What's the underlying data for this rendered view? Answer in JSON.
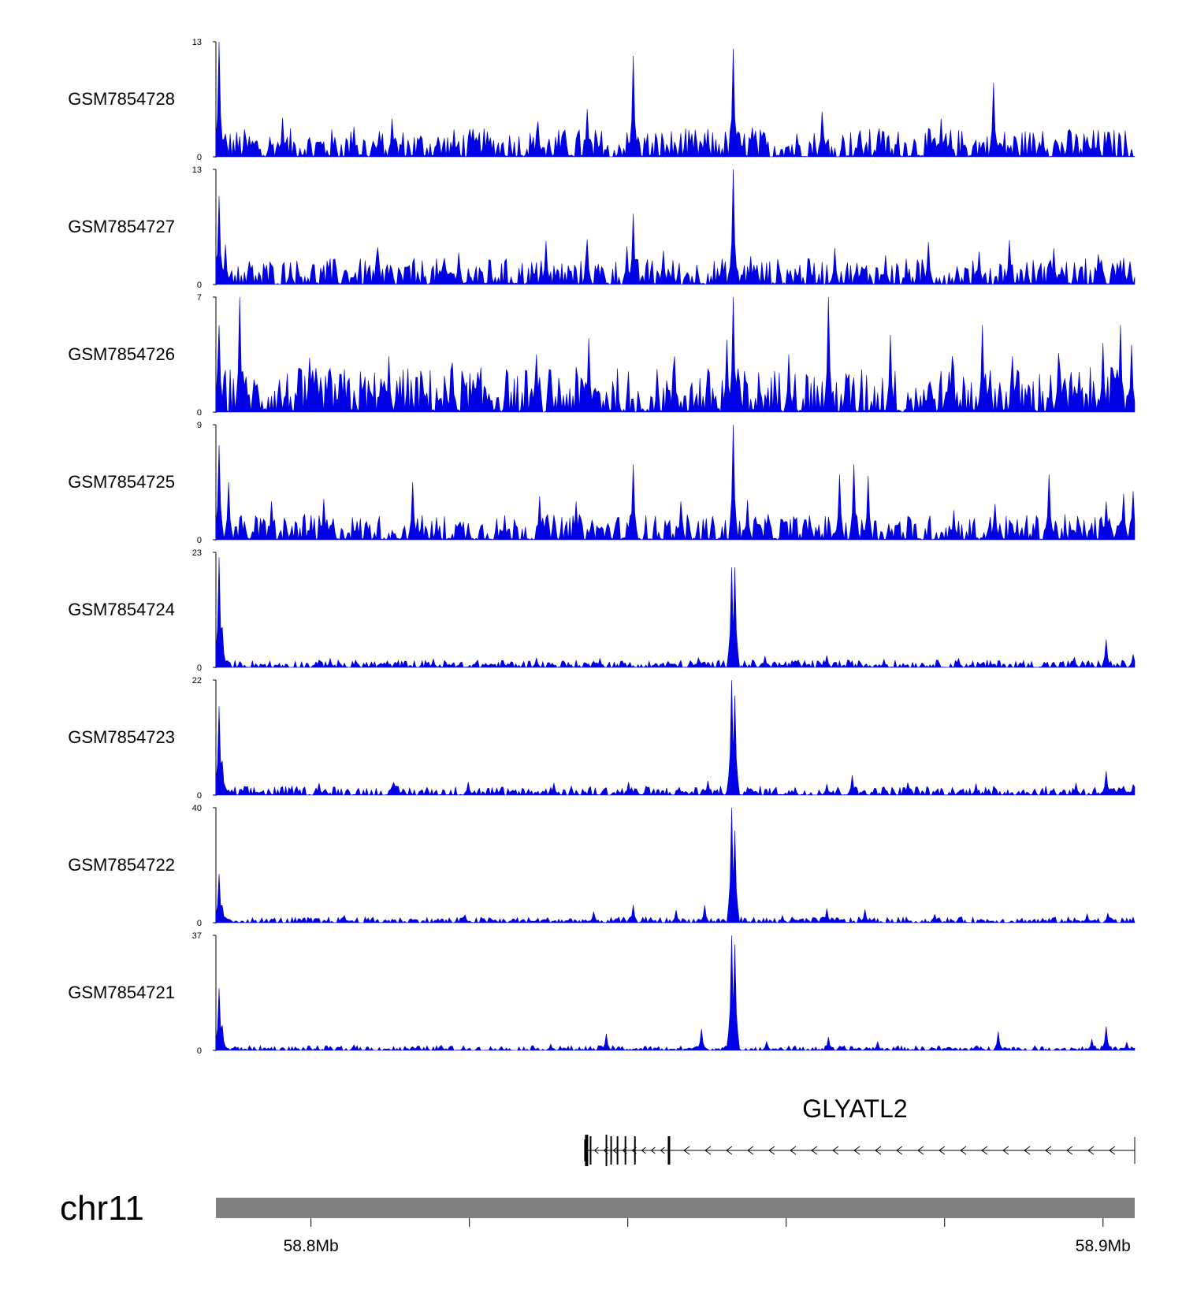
{
  "chart_data": {
    "type": "area",
    "title": "",
    "fill_color": "#0000e6",
    "chromosome": "chr11",
    "x_range_mb": [
      58.788,
      58.904
    ],
    "x_ticks_mb": [
      58.8,
      58.82,
      58.84,
      58.86,
      58.88,
      58.9
    ],
    "x_tick_labels": [
      "58.8Mb",
      "",
      "",
      "",
      "",
      "58.9Mb"
    ],
    "tracks": [
      {
        "name": "GSM7854728",
        "ymax": 13,
        "ymin_label": "0",
        "peaks": [
          [
            58.7884,
            13
          ],
          [
            58.7893,
            2.6
          ],
          [
            58.7965,
            4.4
          ],
          [
            58.8054,
            3.4
          ],
          [
            58.8102,
            4.3
          ],
          [
            58.8219,
            2.6
          ],
          [
            58.8286,
            4.0
          ],
          [
            58.8348,
            5.4
          ],
          [
            58.8406,
            11.4
          ],
          [
            58.8534,
            12.2
          ],
          [
            58.8558,
            3.3
          ],
          [
            58.8646,
            5.1
          ],
          [
            58.8717,
            3.2
          ],
          [
            58.8795,
            4.3
          ],
          [
            58.8862,
            8.4
          ],
          [
            58.8924,
            2.9
          ],
          [
            58.8987,
            2.7
          ]
        ],
        "baseline": 1.3
      },
      {
        "name": "GSM7854727",
        "ymax": 13,
        "ymin_label": "0",
        "peaks": [
          [
            58.7884,
            10
          ],
          [
            58.7893,
            4.5
          ],
          [
            58.7975,
            2.5
          ],
          [
            58.8085,
            4.2
          ],
          [
            58.8187,
            3.6
          ],
          [
            58.8297,
            4.9
          ],
          [
            58.8349,
            5.1
          ],
          [
            58.8398,
            4.3
          ],
          [
            58.8407,
            8.0
          ],
          [
            58.8445,
            3.8
          ],
          [
            58.8534,
            13
          ],
          [
            58.8555,
            3.2
          ],
          [
            58.8661,
            4.1
          ],
          [
            58.8725,
            3.3
          ],
          [
            58.8779,
            4.8
          ],
          [
            58.8844,
            3.7
          ],
          [
            58.8882,
            5.0
          ],
          [
            58.8937,
            4.1
          ],
          [
            58.8993,
            3.4
          ],
          [
            58.9025,
            3.0
          ]
        ],
        "baseline": 1.2
      },
      {
        "name": "GSM7854726",
        "ymax": 7,
        "ymin_label": "0",
        "peaks": [
          [
            58.7884,
            5.3
          ],
          [
            58.7911,
            7.0
          ],
          [
            58.7998,
            3.3
          ],
          [
            58.8098,
            3.4
          ],
          [
            58.8178,
            3.0
          ],
          [
            58.8285,
            3.5
          ],
          [
            58.8351,
            4.5
          ],
          [
            58.8458,
            3.4
          ],
          [
            58.8525,
            4.4
          ],
          [
            58.8534,
            7.0
          ],
          [
            58.8604,
            3.5
          ],
          [
            58.8653,
            7.0
          ],
          [
            58.8731,
            4.7
          ],
          [
            58.8809,
            3.4
          ],
          [
            58.8848,
            5.3
          ],
          [
            58.8886,
            3.4
          ],
          [
            58.8943,
            3.6
          ],
          [
            58.9,
            4.2
          ],
          [
            58.9022,
            5.3
          ],
          [
            58.9035,
            4.1
          ]
        ],
        "baseline": 1.1
      },
      {
        "name": "GSM7854725",
        "ymax": 9,
        "ymin_label": "0",
        "peaks": [
          [
            58.7884,
            7.4
          ],
          [
            58.7897,
            4.5
          ],
          [
            58.7951,
            3.0
          ],
          [
            58.8017,
            3.2
          ],
          [
            58.8129,
            4.5
          ],
          [
            58.8289,
            3.4
          ],
          [
            58.8334,
            3.0
          ],
          [
            58.8406,
            5.9
          ],
          [
            58.8468,
            3.0
          ],
          [
            58.8534,
            9.0
          ],
          [
            58.8551,
            3.1
          ],
          [
            58.8668,
            5.1
          ],
          [
            58.8686,
            5.9
          ],
          [
            58.8704,
            5.0
          ],
          [
            58.8812,
            2.3
          ],
          [
            58.8864,
            2.8
          ],
          [
            58.8932,
            5.1
          ],
          [
            58.9003,
            3.0
          ],
          [
            58.9025,
            3.6
          ],
          [
            58.9037,
            3.8
          ]
        ],
        "baseline": 0.8
      },
      {
        "name": "GSM7854724",
        "ymax": 23,
        "ymin_label": "0",
        "peaks": [
          [
            58.7884,
            22
          ],
          [
            58.7888,
            8
          ],
          [
            58.8025,
            1.8
          ],
          [
            58.8155,
            1.7
          ],
          [
            58.8285,
            1.9
          ],
          [
            58.8364,
            1.8
          ],
          [
            58.849,
            1.9
          ],
          [
            58.8531,
            20
          ],
          [
            58.8535,
            20
          ],
          [
            58.8573,
            2.3
          ],
          [
            58.8652,
            2.4
          ],
          [
            58.8723,
            1.6
          ],
          [
            58.8817,
            1.8
          ],
          [
            58.8964,
            2.0
          ],
          [
            58.9004,
            5.6
          ],
          [
            58.9038,
            2.6
          ]
        ],
        "baseline": 0.6
      },
      {
        "name": "GSM7854723",
        "ymax": 22,
        "ymin_label": "0",
        "peaks": [
          [
            58.7884,
            17
          ],
          [
            58.7889,
            6.5
          ],
          [
            58.801,
            2.3
          ],
          [
            58.8105,
            2.4
          ],
          [
            58.8199,
            2.5
          ],
          [
            58.8307,
            2.3
          ],
          [
            58.84,
            2.5
          ],
          [
            58.8502,
            2.7
          ],
          [
            58.8532,
            22
          ],
          [
            58.8535,
            19
          ],
          [
            58.8651,
            2.1
          ],
          [
            58.8683,
            3.8
          ],
          [
            58.8754,
            2.4
          ],
          [
            58.884,
            2.2
          ],
          [
            58.8965,
            2.3
          ],
          [
            58.9004,
            4.6
          ],
          [
            58.9038,
            2.0
          ]
        ],
        "baseline": 0.7
      },
      {
        "name": "GSM7854722",
        "ymax": 40,
        "ymin_label": "0",
        "peaks": [
          [
            58.7884,
            17
          ],
          [
            58.7889,
            6
          ],
          [
            58.8042,
            2.5
          ],
          [
            58.8195,
            2.7
          ],
          [
            58.8356,
            3.8
          ],
          [
            58.8407,
            6.2
          ],
          [
            58.8462,
            4.4
          ],
          [
            58.8498,
            6.0
          ],
          [
            58.8532,
            40
          ],
          [
            58.8536,
            32
          ],
          [
            58.8595,
            2.5
          ],
          [
            58.8652,
            4.9
          ],
          [
            58.87,
            4.6
          ],
          [
            58.8787,
            2.9
          ],
          [
            58.898,
            3.1
          ],
          [
            58.9006,
            3.3
          ]
        ],
        "baseline": 0.8
      },
      {
        "name": "GSM7854721",
        "ymax": 37,
        "ymin_label": "0",
        "peaks": [
          [
            58.7884,
            20
          ],
          [
            58.7889,
            8
          ],
          [
            58.8055,
            1.8
          ],
          [
            58.8165,
            1.6
          ],
          [
            58.8303,
            2.0
          ],
          [
            58.8373,
            5.3
          ],
          [
            58.8494,
            6.9
          ],
          [
            58.8532,
            37
          ],
          [
            58.8535,
            34
          ],
          [
            58.8575,
            2.8
          ],
          [
            58.8654,
            4.3
          ],
          [
            58.8715,
            2.8
          ],
          [
            58.8868,
            6.0
          ],
          [
            58.8985,
            3.6
          ],
          [
            58.9004,
            7.7
          ],
          [
            58.903,
            2.6
          ]
        ],
        "baseline": 0.6
      }
    ],
    "gene": {
      "name": "GLYATL2",
      "strand": "-",
      "start_mb": 58.8347,
      "end_mb": 58.904,
      "exons_mb": [
        58.8348,
        58.8353,
        58.8373,
        58.8379,
        58.8387,
        58.8397,
        58.8409,
        58.8452
      ]
    }
  }
}
